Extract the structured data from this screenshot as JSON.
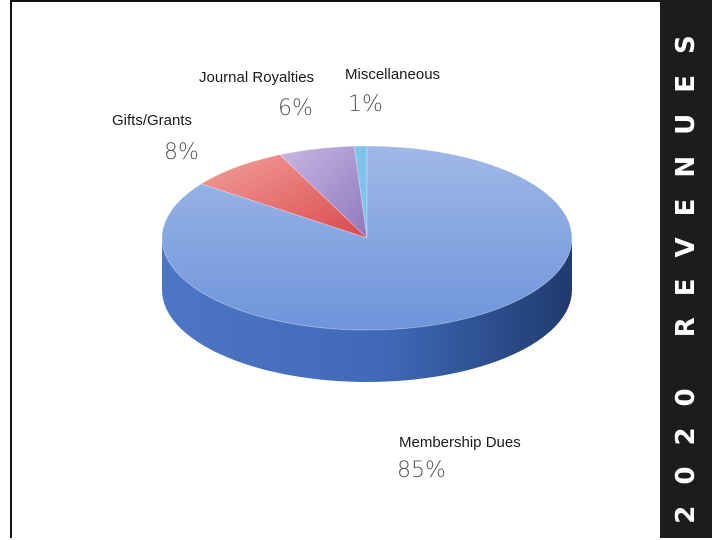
{
  "side_banner": {
    "title": "2020 REVENUES"
  },
  "chart_data": {
    "type": "pie",
    "title": "2020 REVENUES",
    "categories": [
      "Membership Dues",
      "Gifts/Grants",
      "Journal Royalties",
      "Miscellaneous"
    ],
    "values": [
      85,
      8,
      6,
      1
    ],
    "labels": [
      "85%",
      "8%",
      "6%",
      "1%"
    ],
    "colors": [
      "#5b86d6",
      "#e0605f",
      "#9f86c8",
      "#7ec3ea"
    ],
    "legend": "none",
    "style": "3d"
  }
}
